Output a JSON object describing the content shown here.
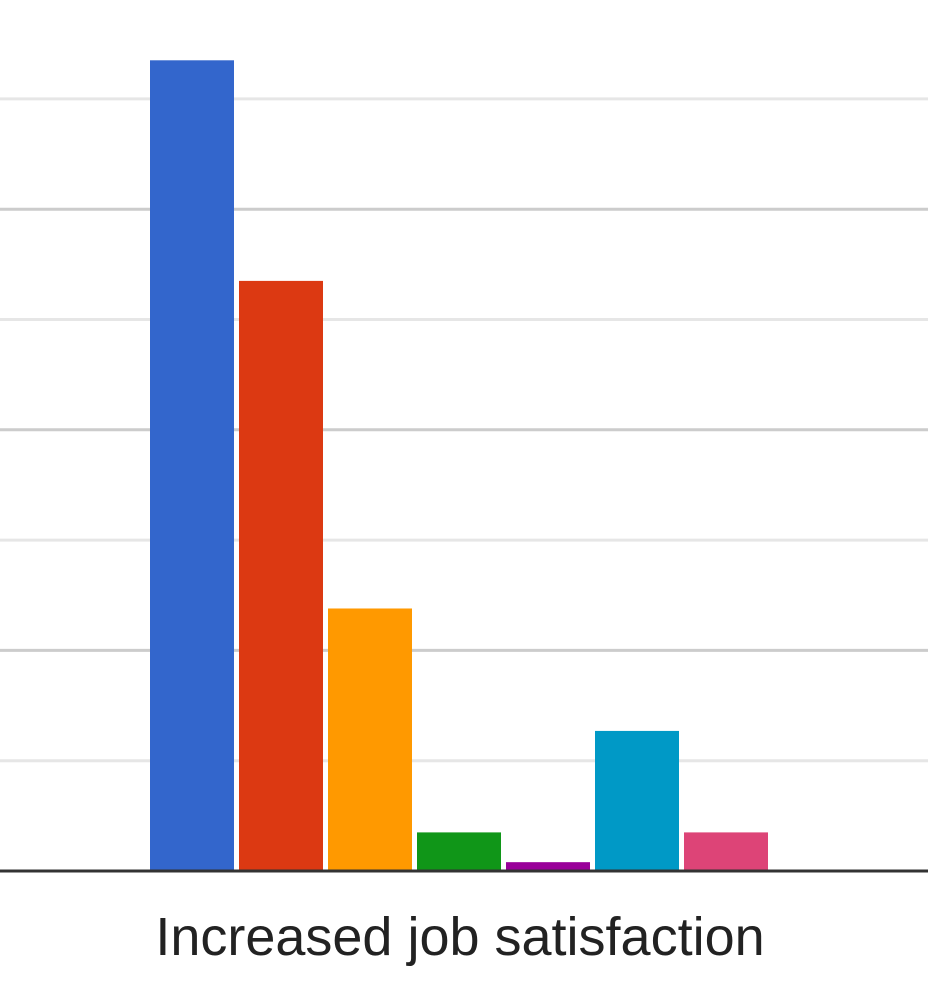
{
  "chart_data": {
    "type": "bar",
    "categories": [
      "Increased job satisfaction"
    ],
    "series": [
      {
        "values": [
          7.35
        ],
        "color": "#3366cc"
      },
      {
        "values": [
          5.35
        ],
        "color": "#dc3912"
      },
      {
        "values": [
          2.38
        ],
        "color": "#ff9900"
      },
      {
        "values": [
          0.35
        ],
        "color": "#109618"
      },
      {
        "values": [
          0.08
        ],
        "color": "#990099"
      },
      {
        "values": [
          1.27
        ],
        "color": "#0099c6"
      },
      {
        "values": [
          0.35
        ],
        "color": "#dd4477"
      }
    ],
    "ylim": [
      0,
      7
    ],
    "yticks": [
      0,
      1,
      2,
      3,
      4,
      5,
      6,
      7
    ],
    "grid": true,
    "legend": "none"
  }
}
